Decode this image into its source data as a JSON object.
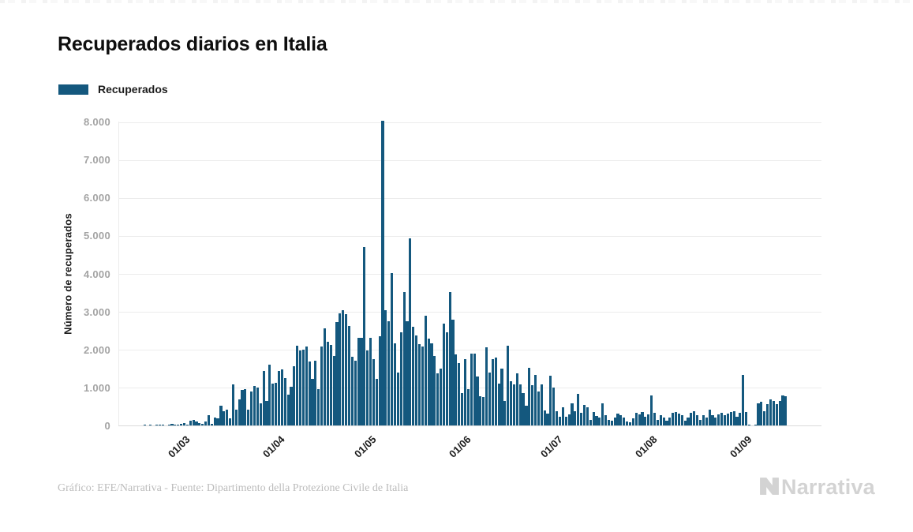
{
  "header": {
    "title": "Recuperados diarios en Italia"
  },
  "legend": {
    "label": "Recuperados"
  },
  "footer": {
    "credit": "Gráfico: EFE/Narrativa - Fuente: Dipartimento della Protezione Civile de Italia"
  },
  "brand": {
    "name": "Narrativa"
  },
  "colors": {
    "bar": "#14587E",
    "grid": "#ececec",
    "baseline": "#dadada",
    "y_tick_text": "#a3a3a3",
    "x_tick_text": "#1c1c1c",
    "title_text": "#0e0e0e",
    "footer_text": "#bcbcbc",
    "brand_text": "#d3d3d3"
  },
  "chart_data": {
    "type": "bar",
    "title": "Recuperados diarios en Italia",
    "xlabel": "",
    "ylabel": "Número de recuperados",
    "legend_position": "top-left",
    "grid": "horizontal",
    "ylim": [
      0,
      8000
    ],
    "y_ticks": [
      {
        "label": "0",
        "value": 0
      },
      {
        "label": "1.000",
        "value": 1000
      },
      {
        "label": "2.000",
        "value": 2000
      },
      {
        "label": "3.000",
        "value": 3000
      },
      {
        "label": "4.000",
        "value": 4000
      },
      {
        "label": "5.000",
        "value": 5000
      },
      {
        "label": "6.000",
        "value": 6000
      },
      {
        "label": "7.000",
        "value": 7000
      },
      {
        "label": "8.000",
        "value": 8000
      }
    ],
    "x_ticks": [
      {
        "label": "01/03",
        "index": 15
      },
      {
        "label": "01/04",
        "index": 46
      },
      {
        "label": "01/05",
        "index": 76
      },
      {
        "label": "01/06",
        "index": 107
      },
      {
        "label": "01/07",
        "index": 137
      },
      {
        "label": "01/08",
        "index": 168
      },
      {
        "label": "01/09",
        "index": 199
      }
    ],
    "series": [
      {
        "name": "Recuperados",
        "color": "#14587E",
        "values": [
          0,
          0,
          0,
          1,
          0,
          1,
          0,
          1,
          1,
          1,
          0,
          2,
          42,
          1,
          4,
          33,
          66,
          11,
          116,
          138,
          109,
          66,
          33,
          102,
          280,
          41,
          213,
          181,
          527,
          369,
          414,
          192,
          1084,
          415,
          689,
          943,
          952,
          408,
          894,
          1036,
          999,
          589,
          1434,
          646,
          1590,
          1109,
          1118,
          1431,
          1480,
          1238,
          819,
          1022,
          1555,
          2099,
          1979,
          1985,
          2079,
          1677,
          1224,
          1695,
          962,
          2072,
          2563,
          2200,
          2128,
          1822,
          2723,
          2943,
          3033,
          2922,
          2622,
          1808,
          1696,
          2317,
          2311,
          4693,
          1965,
          2304,
          1740,
          1225,
          2352,
          8014,
          3031,
          2747,
          4008,
          2155,
          1401,
          2452,
          3502,
          2747,
          4917,
          2605,
          2366,
          2150,
          2075,
          2881,
          2278,
          2160,
          1836,
          1375,
          1502,
          2677,
          2443,
          3503,
          2789,
          1874,
          1639,
          848,
          1737,
          957,
          1886,
          1886,
          1297,
          759,
          747,
          2062,
          1399,
          1747,
          1780,
          1111,
          1505,
          640,
          2097,
          1159,
          1089,
          1363,
          1089,
          852,
          526,
          1526,
          1064,
          1321,
          890,
          1091,
          400,
          306,
          1310,
          999,
          366,
          223,
          477,
          231,
          295,
          574,
          369,
          823,
          338,
          533,
          477,
          155,
          350,
          240,
          210,
          590,
          265,
          140,
          120,
          210,
          310,
          265,
          210,
          105,
          90,
          195,
          333,
          290,
          360,
          219,
          295,
          800,
          333,
          150,
          265,
          210,
          120,
          210,
          333,
          360,
          310,
          265,
          125,
          210,
          333,
          380,
          265,
          150,
          265,
          210,
          415,
          265,
          210,
          290,
          333,
          265,
          310,
          360,
          380,
          220,
          338,
          1322,
          353,
          8,
          0,
          12,
          590,
          625,
          380,
          555,
          695,
          640,
          555,
          640,
          780,
          760
        ]
      }
    ]
  }
}
